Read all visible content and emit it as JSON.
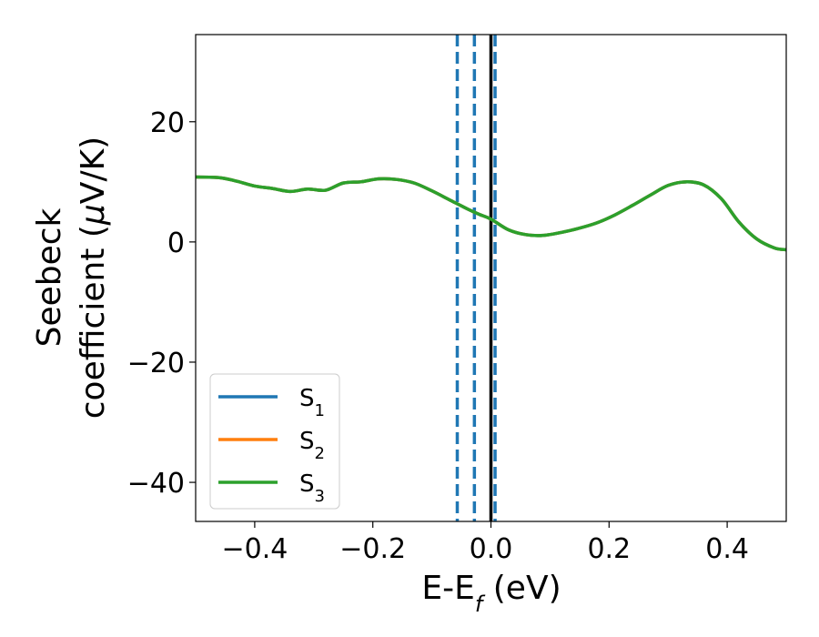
{
  "chart_data": {
    "type": "line",
    "xlabel": {
      "main": "E-E",
      "sub": "f",
      "unit": " (eV)"
    },
    "ylabel": {
      "line1": "Seebeck",
      "line2": "coefficient  (",
      "mu": "μ",
      "line2_end": "V/K)"
    },
    "xlim": [
      -0.5,
      0.5
    ],
    "ylim": [
      -46.5,
      34.5
    ],
    "xticks": [
      -0.4,
      -0.2,
      0.0,
      0.2,
      0.4
    ],
    "xtick_labels": [
      "−0.4",
      "−0.2",
      "0.0",
      "0.2",
      "0.4"
    ],
    "yticks": [
      -40,
      -20,
      0,
      20
    ],
    "ytick_labels": [
      "−40",
      "−20",
      "0",
      "20"
    ],
    "grid": false,
    "legend_position": "lower-left",
    "series": [
      {
        "name": "S",
        "sub": "1",
        "color": "#1f77b4",
        "x": [
          -0.5,
          -0.46,
          -0.43,
          -0.4,
          -0.37,
          -0.34,
          -0.31,
          -0.28,
          -0.25,
          -0.22,
          -0.19,
          -0.16,
          -0.13,
          -0.1,
          -0.07,
          -0.04,
          -0.02,
          0.0,
          0.03,
          0.06,
          0.09,
          0.12,
          0.15,
          0.18,
          0.21,
          0.24,
          0.27,
          0.3,
          0.33,
          0.36,
          0.39,
          0.42,
          0.45,
          0.48,
          0.5
        ],
        "y": [
          10.8,
          10.7,
          10.1,
          9.3,
          8.9,
          8.4,
          8.8,
          8.6,
          9.8,
          10.0,
          10.5,
          10.4,
          9.8,
          8.5,
          7.0,
          5.5,
          4.6,
          3.8,
          2.0,
          1.2,
          1.1,
          1.6,
          2.3,
          3.2,
          4.5,
          6.1,
          7.8,
          9.4,
          10.0,
          9.5,
          7.2,
          3.3,
          0.5,
          -1.0,
          -1.3
        ]
      },
      {
        "name": "S",
        "sub": "2",
        "color": "#ff7f0e",
        "x": [
          -0.5,
          -0.46,
          -0.43,
          -0.4,
          -0.37,
          -0.34,
          -0.31,
          -0.28,
          -0.25,
          -0.22,
          -0.19,
          -0.16,
          -0.13,
          -0.1,
          -0.07,
          -0.04,
          -0.02,
          0.0,
          0.03,
          0.06,
          0.09,
          0.12,
          0.15,
          0.18,
          0.21,
          0.24,
          0.27,
          0.3,
          0.33,
          0.36,
          0.39,
          0.42,
          0.45,
          0.48,
          0.5
        ],
        "y": [
          10.8,
          10.7,
          10.1,
          9.3,
          8.9,
          8.4,
          8.8,
          8.6,
          9.8,
          10.0,
          10.5,
          10.4,
          9.8,
          8.5,
          7.0,
          5.5,
          4.6,
          3.8,
          2.0,
          1.2,
          1.1,
          1.6,
          2.3,
          3.2,
          4.5,
          6.1,
          7.8,
          9.4,
          10.0,
          9.5,
          7.2,
          3.3,
          0.5,
          -1.0,
          -1.3
        ]
      },
      {
        "name": "S",
        "sub": "3",
        "color": "#2ca02c",
        "x": [
          -0.5,
          -0.46,
          -0.43,
          -0.4,
          -0.37,
          -0.34,
          -0.31,
          -0.28,
          -0.25,
          -0.22,
          -0.19,
          -0.16,
          -0.13,
          -0.1,
          -0.07,
          -0.04,
          -0.02,
          0.0,
          0.03,
          0.06,
          0.09,
          0.12,
          0.15,
          0.18,
          0.21,
          0.24,
          0.27,
          0.3,
          0.33,
          0.36,
          0.39,
          0.42,
          0.45,
          0.48,
          0.5
        ],
        "y": [
          10.8,
          10.7,
          10.1,
          9.3,
          8.9,
          8.4,
          8.8,
          8.6,
          9.8,
          10.0,
          10.5,
          10.4,
          9.8,
          8.5,
          7.0,
          5.5,
          4.6,
          3.8,
          2.0,
          1.2,
          1.1,
          1.6,
          2.3,
          3.2,
          4.5,
          6.1,
          7.8,
          9.4,
          10.0,
          9.5,
          7.2,
          3.3,
          0.5,
          -1.0,
          -1.3
        ]
      }
    ],
    "vlines": [
      {
        "x": -0.057,
        "style": "dashed",
        "color": "#1f77b4"
      },
      {
        "x": -0.028,
        "style": "dashed",
        "color": "#1f77b4"
      },
      {
        "x": 0.007,
        "style": "dashed",
        "color": "#1f77b4"
      },
      {
        "x": 0.0,
        "style": "solid",
        "color": "#000000"
      }
    ]
  }
}
